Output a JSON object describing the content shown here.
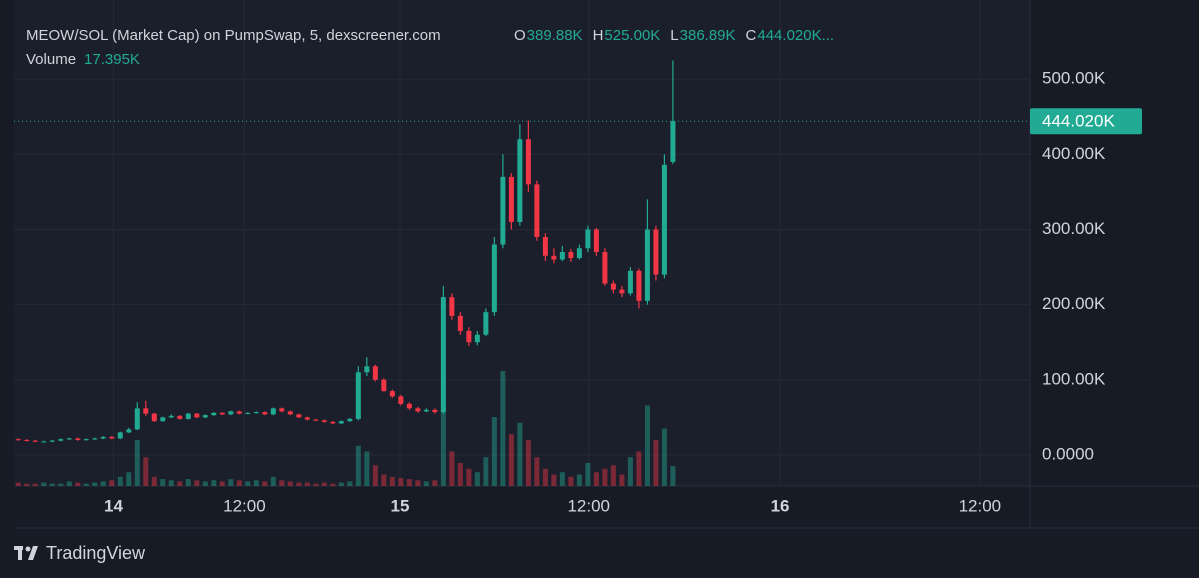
{
  "chart_data": {
    "type": "candlestick",
    "title": "MEOW/SOL (Market Cap) on PumpSwap, 5, dexscreener.com",
    "legend_items": [
      {
        "key": "O",
        "value": "389.88K"
      },
      {
        "key": "H",
        "value": "525.00K"
      },
      {
        "key": "L",
        "value": "386.89K"
      },
      {
        "key": "C",
        "value": "444.020K..."
      }
    ],
    "volume_label": "Volume",
    "volume_value_label": "17.395K",
    "last_price_label": "444.020K",
    "brand": "TradingView",
    "up_color": "#22ab94",
    "down_color": "#f23645",
    "grid": true,
    "xlim": [
      -0.5,
      119
    ],
    "xticks": [
      {
        "value": 11.2,
        "label": "14"
      },
      {
        "value": 26.6,
        "label": "12:00"
      },
      {
        "value": 44.9,
        "label": "15"
      },
      {
        "value": 67.1,
        "label": "12:00"
      },
      {
        "value": 89.6,
        "label": "16"
      },
      {
        "value": 113.1,
        "label": "12:00"
      }
    ],
    "ylim": [
      -41.3,
      605.3
    ],
    "yticks": [
      {
        "value": 0,
        "label": "0.0000"
      },
      {
        "value": 100,
        "label": "100.00K"
      },
      {
        "value": 200,
        "label": "200.00K"
      },
      {
        "value": 300,
        "label": "300.00K"
      },
      {
        "value": 400,
        "label": "400.00K"
      },
      {
        "value": 500,
        "label": "500.00K"
      }
    ],
    "open": [
      21,
      20,
      19,
      18,
      18,
      19,
      21,
      22,
      20,
      21,
      22,
      24,
      22,
      30,
      34,
      62,
      55,
      45,
      50,
      52,
      48,
      55,
      50,
      53,
      56,
      54,
      58,
      55,
      56,
      57,
      54,
      62,
      58,
      54,
      50,
      47,
      46,
      44,
      42,
      45,
      48,
      110,
      118,
      100,
      85,
      78,
      68,
      62,
      58,
      60,
      57,
      210,
      185,
      165,
      150,
      160,
      190,
      280,
      370,
      310,
      420,
      360,
      290,
      265,
      260,
      270,
      262,
      275,
      300,
      270,
      228,
      220,
      215,
      245,
      205,
      300,
      240,
      389.88
    ],
    "high": [
      22,
      21,
      20,
      19,
      20,
      22,
      23,
      23,
      22,
      23,
      25,
      25,
      31,
      36,
      70,
      72,
      56,
      51,
      54,
      53,
      56,
      56,
      54,
      57,
      57,
      59,
      59,
      57,
      58,
      58,
      63,
      63,
      59,
      55,
      51,
      48,
      47,
      45,
      46,
      49,
      118,
      130,
      120,
      102,
      87,
      80,
      70,
      64,
      62,
      62,
      225,
      215,
      190,
      170,
      165,
      195,
      290,
      400,
      375,
      440,
      445,
      365,
      295,
      275,
      278,
      274,
      280,
      305,
      302,
      275,
      232,
      225,
      250,
      248,
      340,
      305,
      400,
      525
    ],
    "low": [
      19,
      18,
      17,
      17,
      17,
      18,
      20,
      19,
      19,
      20,
      21,
      21,
      21,
      29,
      33,
      52,
      44,
      44,
      49,
      47,
      47,
      49,
      49,
      52,
      53,
      53,
      54,
      54,
      55,
      53,
      53,
      57,
      53,
      49,
      46,
      45,
      43,
      41,
      41,
      44,
      46,
      105,
      98,
      84,
      76,
      66,
      60,
      56,
      57,
      55,
      55,
      180,
      160,
      145,
      146,
      158,
      185,
      275,
      300,
      305,
      350,
      285,
      258,
      255,
      258,
      257,
      260,
      270,
      265,
      225,
      215,
      210,
      212,
      195,
      200,
      232,
      235,
      386.89
    ],
    "close": [
      20,
      19,
      18,
      18,
      19,
      21,
      22,
      20,
      21,
      22,
      24,
      22,
      30,
      34,
      62,
      55,
      45,
      50,
      52,
      48,
      55,
      50,
      53,
      56,
      54,
      58,
      55,
      56,
      57,
      54,
      62,
      58,
      54,
      50,
      47,
      46,
      44,
      42,
      45,
      48,
      110,
      118,
      100,
      85,
      78,
      68,
      62,
      58,
      60,
      57,
      210,
      185,
      165,
      150,
      160,
      190,
      280,
      370,
      310,
      420,
      360,
      290,
      265,
      260,
      270,
      262,
      275,
      300,
      270,
      228,
      220,
      215,
      245,
      205,
      300,
      240,
      386,
      444.02
    ],
    "volume": [
      3,
      2,
      2,
      3,
      2,
      2,
      4,
      3,
      2,
      3,
      4,
      5,
      8,
      12,
      40,
      25,
      8,
      6,
      5,
      4,
      6,
      5,
      4,
      5,
      4,
      6,
      5,
      4,
      5,
      4,
      8,
      5,
      4,
      3,
      3,
      2,
      3,
      2,
      3,
      4,
      35,
      30,
      18,
      10,
      8,
      7,
      6,
      5,
      4,
      5,
      70,
      30,
      20,
      15,
      12,
      25,
      60,
      100,
      45,
      55,
      40,
      25,
      15,
      10,
      12,
      8,
      10,
      20,
      12,
      15,
      18,
      10,
      25,
      30,
      70,
      40,
      50,
      17.395
    ]
  }
}
